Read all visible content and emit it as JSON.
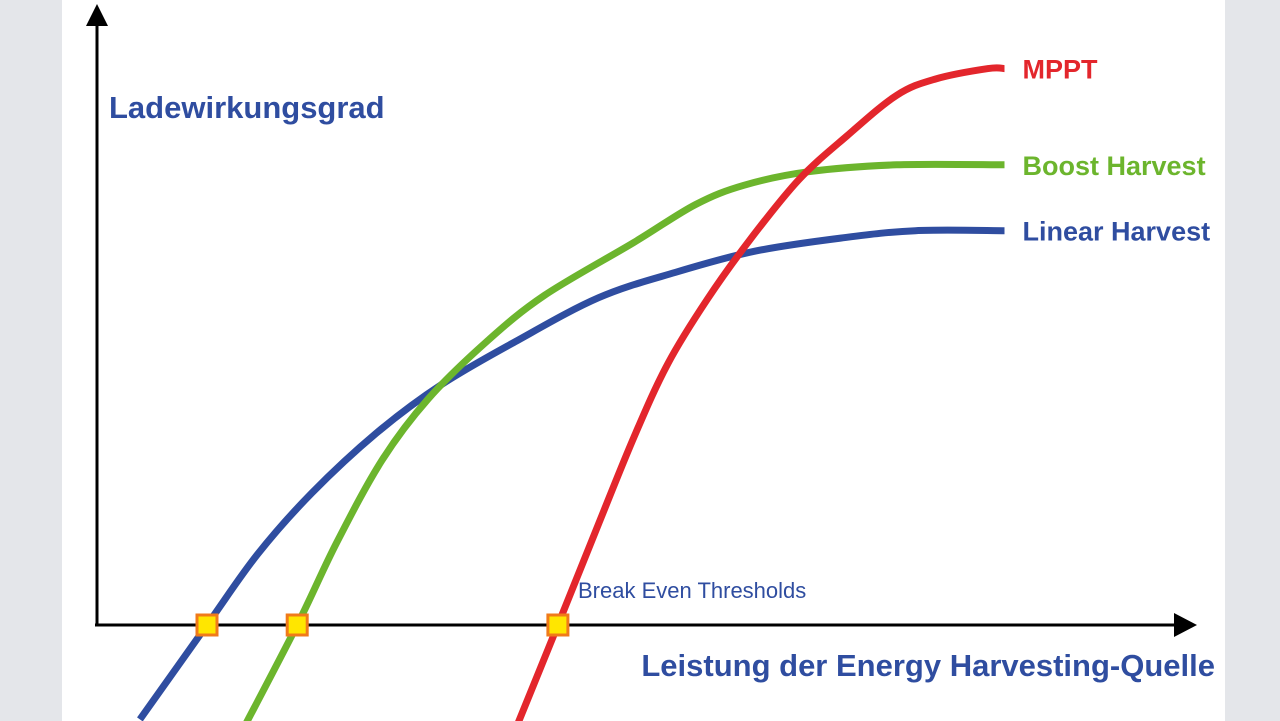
{
  "chart_data": {
    "type": "line",
    "ylabel": "Ladewirkungsgrad",
    "xlabel": "Leistung der Energy Harvesting-Quelle",
    "annotation": "Break Even Thresholds",
    "xlim": [
      0,
      100
    ],
    "ylim": [
      0,
      100
    ],
    "grid": false,
    "legend": "inline-right",
    "series": [
      {
        "name": "MPPT",
        "color": "#e3262c",
        "x": [
          38.0,
          41.9,
          45.6,
          48.8,
          51.9,
          55.5,
          59.3,
          63.8,
          68.2,
          72.7,
          76.2,
          81.0,
          82.5
        ],
        "y": [
          -17.0,
          0.0,
          16.3,
          30.2,
          42.1,
          52.5,
          61.9,
          71.7,
          78.8,
          85.3,
          87.9,
          89.6,
          89.6
        ]
      },
      {
        "name": "Boost Harvest",
        "color": "#6cb52d",
        "x": [
          13.3,
          18.2,
          21.8,
          25.9,
          30.1,
          35.4,
          40.7,
          48.8,
          54.4,
          58.8,
          64.7,
          72.7,
          82.5
        ],
        "y": [
          -16.7,
          0.0,
          13.3,
          26.5,
          36.4,
          45.6,
          53.1,
          61.6,
          67.7,
          70.8,
          73.0,
          74.1,
          74.1
        ]
      },
      {
        "name": "Linear Harvest",
        "color": "#2f4da0",
        "x": [
          3.9,
          10.0,
          14.6,
          19.5,
          25.4,
          31.3,
          38.0,
          45.6,
          52.6,
          59.8,
          67.6,
          74.4,
          82.5
        ],
        "y": [
          -15.2,
          0.0,
          11.4,
          21.2,
          30.9,
          38.7,
          45.6,
          52.7,
          56.8,
          60.2,
          62.3,
          63.5,
          63.5
        ]
      }
    ],
    "markers": [
      {
        "x": 10.0,
        "y": 0
      },
      {
        "x": 18.2,
        "y": 0
      },
      {
        "x": 41.9,
        "y": 0
      }
    ]
  }
}
